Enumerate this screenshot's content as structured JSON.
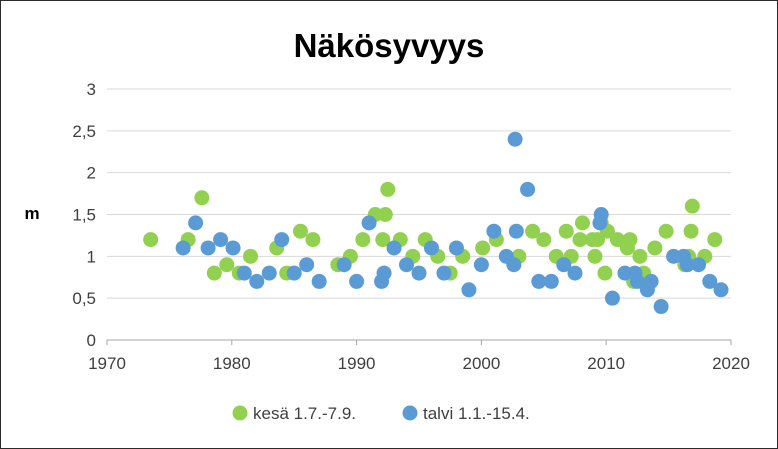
{
  "chart_data": {
    "type": "scatter",
    "title": "Näkösyvyys",
    "xlabel": "",
    "ylabel": "m",
    "xlim": [
      1970,
      2020
    ],
    "ylim": [
      0,
      3
    ],
    "x_ticks": [
      1970,
      1980,
      1990,
      2000,
      2010,
      2020
    ],
    "x_tick_labels": [
      "1970",
      "1980",
      "1990",
      "2000",
      "2010",
      "2020"
    ],
    "y_ticks": [
      0,
      0.5,
      1,
      1.5,
      2,
      2.5,
      3
    ],
    "y_tick_labels": [
      "0",
      "0,5",
      "1",
      "1,5",
      "2",
      "2,5",
      "3"
    ],
    "grid": "horizontal",
    "legend": "bottom",
    "series": [
      {
        "name": "kesä 1.7.-7.9.",
        "color": "#92d050",
        "points": [
          [
            1973.5,
            1.2
          ],
          [
            1976.5,
            1.2
          ],
          [
            1977.6,
            1.7
          ],
          [
            1978.6,
            0.8
          ],
          [
            1979.6,
            0.9
          ],
          [
            1980.6,
            0.8
          ],
          [
            1981.5,
            1.0
          ],
          [
            1983.6,
            1.1
          ],
          [
            1984.4,
            0.8
          ],
          [
            1985.5,
            1.3
          ],
          [
            1986.5,
            1.2
          ],
          [
            1988.5,
            0.9
          ],
          [
            1989.5,
            1.0
          ],
          [
            1990.5,
            1.2
          ],
          [
            1991.5,
            1.5
          ],
          [
            1992.1,
            1.2
          ],
          [
            1992.3,
            1.5
          ],
          [
            1992.5,
            1.8
          ],
          [
            1993.5,
            1.2
          ],
          [
            1994.5,
            1.0
          ],
          [
            1995.5,
            1.2
          ],
          [
            1996.5,
            1.0
          ],
          [
            1997.5,
            0.8
          ],
          [
            1998.5,
            1.0
          ],
          [
            2000.1,
            1.1
          ],
          [
            2001.2,
            1.2
          ],
          [
            2003.0,
            1.0
          ],
          [
            2004.1,
            1.3
          ],
          [
            2005.0,
            1.2
          ],
          [
            2006.0,
            1.0
          ],
          [
            2006.8,
            1.3
          ],
          [
            2007.2,
            1.0
          ],
          [
            2007.9,
            1.2
          ],
          [
            2008.1,
            1.4
          ],
          [
            2008.9,
            1.2
          ],
          [
            2009.1,
            1.0
          ],
          [
            2009.3,
            1.2
          ],
          [
            2009.6,
            1.4
          ],
          [
            2009.9,
            0.8
          ],
          [
            2010.1,
            1.3
          ],
          [
            2010.9,
            1.2
          ],
          [
            2011.7,
            1.1
          ],
          [
            2011.9,
            1.2
          ],
          [
            2012.2,
            0.7
          ],
          [
            2012.7,
            1.0
          ],
          [
            2013.0,
            0.8
          ],
          [
            2013.9,
            1.1
          ],
          [
            2014.8,
            1.3
          ],
          [
            2016.3,
            0.9
          ],
          [
            2016.6,
            1.0
          ],
          [
            2016.8,
            1.3
          ],
          [
            2016.9,
            1.6
          ],
          [
            2017.9,
            1.0
          ],
          [
            2018.7,
            1.2
          ]
        ]
      },
      {
        "name": "talvi 1.1.-15.4.",
        "color": "#5b9bd5",
        "points": [
          [
            1976.1,
            1.1
          ],
          [
            1977.1,
            1.4
          ],
          [
            1978.1,
            1.1
          ],
          [
            1979.1,
            1.2
          ],
          [
            1980.1,
            1.1
          ],
          [
            1981.0,
            0.8
          ],
          [
            1982.0,
            0.7
          ],
          [
            1983.0,
            0.8
          ],
          [
            1984.0,
            1.2
          ],
          [
            1985.0,
            0.8
          ],
          [
            1986.0,
            0.9
          ],
          [
            1987.0,
            0.7
          ],
          [
            1989.0,
            0.9
          ],
          [
            1990.0,
            0.7
          ],
          [
            1991.0,
            1.4
          ],
          [
            1992.0,
            0.7
          ],
          [
            1992.2,
            0.8
          ],
          [
            1993.0,
            1.1
          ],
          [
            1994.0,
            0.9
          ],
          [
            1995.0,
            0.8
          ],
          [
            1996.0,
            1.1
          ],
          [
            1997.0,
            0.8
          ],
          [
            1998.0,
            1.1
          ],
          [
            1999.0,
            0.6
          ],
          [
            2000.0,
            0.9
          ],
          [
            2001.0,
            1.3
          ],
          [
            2002.0,
            1.0
          ],
          [
            2002.6,
            0.9
          ],
          [
            2002.7,
            2.4
          ],
          [
            2002.8,
            1.3
          ],
          [
            2003.7,
            1.8
          ],
          [
            2004.6,
            0.7
          ],
          [
            2005.6,
            0.7
          ],
          [
            2006.6,
            0.9
          ],
          [
            2007.5,
            0.8
          ],
          [
            2009.5,
            1.4
          ],
          [
            2009.6,
            1.5
          ],
          [
            2010.5,
            0.5
          ],
          [
            2011.5,
            0.8
          ],
          [
            2012.3,
            0.8
          ],
          [
            2012.5,
            0.7
          ],
          [
            2013.3,
            0.6
          ],
          [
            2013.6,
            0.7
          ],
          [
            2014.4,
            0.4
          ],
          [
            2015.4,
            1.0
          ],
          [
            2016.2,
            1.0
          ],
          [
            2016.5,
            0.9
          ],
          [
            2017.4,
            0.9
          ],
          [
            2018.3,
            0.7
          ],
          [
            2019.2,
            0.6
          ]
        ]
      }
    ]
  }
}
